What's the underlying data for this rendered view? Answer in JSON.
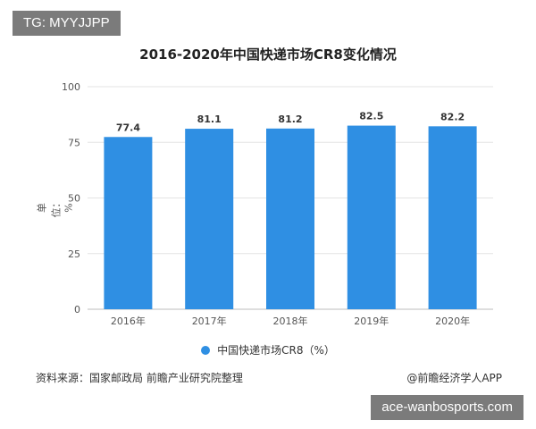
{
  "overlay": {
    "top_tag": "TG: MYYJJPP",
    "bottom_tag": "ace-wanbosports.com"
  },
  "colors": {
    "bar": "#2f8fe3",
    "grid": "#e3e3e3",
    "axis_text": "#555555"
  },
  "chart_data": {
    "type": "bar",
    "title": "2016-2020年中国快递市场CR8变化情况",
    "ylabel": "单位：%",
    "xlabel": "",
    "categories": [
      "2016年",
      "2017年",
      "2018年",
      "2019年",
      "2020年"
    ],
    "series": [
      {
        "name": "中国快递市场CR8（%）",
        "values": [
          77.4,
          81.1,
          81.2,
          82.5,
          82.2
        ]
      }
    ],
    "value_labels": [
      "77.4",
      "81.1",
      "81.2",
      "82.5",
      "82.2"
    ],
    "ylim": [
      0,
      100
    ],
    "yticks": [
      0,
      25,
      50,
      75,
      100
    ],
    "grid": true,
    "legend_position": "bottom"
  },
  "footer": {
    "source": "资料来源：国家邮政局 前瞻产业研究院整理",
    "brand": "@前瞻经济学人APP"
  }
}
